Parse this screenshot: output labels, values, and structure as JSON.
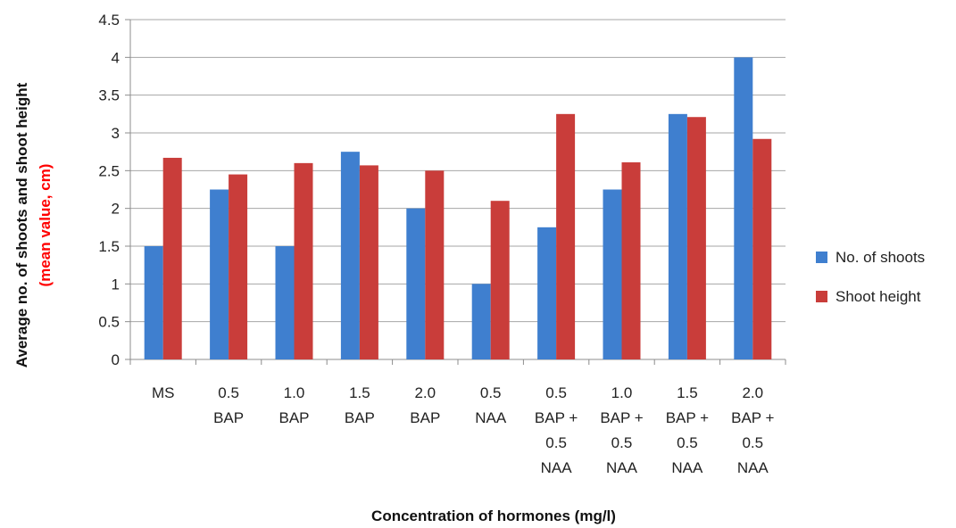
{
  "chart_data": {
    "type": "bar",
    "title": "",
    "xlabel": "Concentration of hormones (mg/l)",
    "ylabel_parts": [
      "Average no. of shoots and shoot height",
      "(mean value, cm)"
    ],
    "ylabel_colors": [
      "#111111",
      "#ff0000"
    ],
    "categories": [
      [
        "MS"
      ],
      [
        "0.5",
        "BAP"
      ],
      [
        "1.0",
        "BAP"
      ],
      [
        "1.5",
        "BAP"
      ],
      [
        "2.0",
        "BAP"
      ],
      [
        "0.5",
        "NAA"
      ],
      [
        "0.5",
        "BAP +",
        "0.5",
        "NAA"
      ],
      [
        "1.0",
        "BAP +",
        "0.5",
        "NAA"
      ],
      [
        "1.5",
        "BAP +",
        "0.5",
        "NAA"
      ],
      [
        "2.0",
        "BAP +",
        "0.5",
        "NAA"
      ]
    ],
    "series": [
      {
        "name": "No. of shoots",
        "color": "#3f7fcf",
        "values": [
          1.5,
          2.25,
          1.5,
          2.75,
          2.0,
          1.0,
          1.75,
          2.25,
          3.25,
          4.0
        ]
      },
      {
        "name": "Shoot height",
        "color": "#c93d3a",
        "values": [
          2.67,
          2.45,
          2.6,
          2.57,
          2.5,
          2.1,
          3.25,
          2.61,
          3.21,
          2.92
        ]
      }
    ],
    "ylim": [
      0,
      4.5
    ],
    "yticks": [
      "0",
      "0.5",
      "1",
      "1.5",
      "2",
      "2.5",
      "3",
      "3.5",
      "4",
      "4.5"
    ],
    "grid": true,
    "legend_position": "right"
  }
}
